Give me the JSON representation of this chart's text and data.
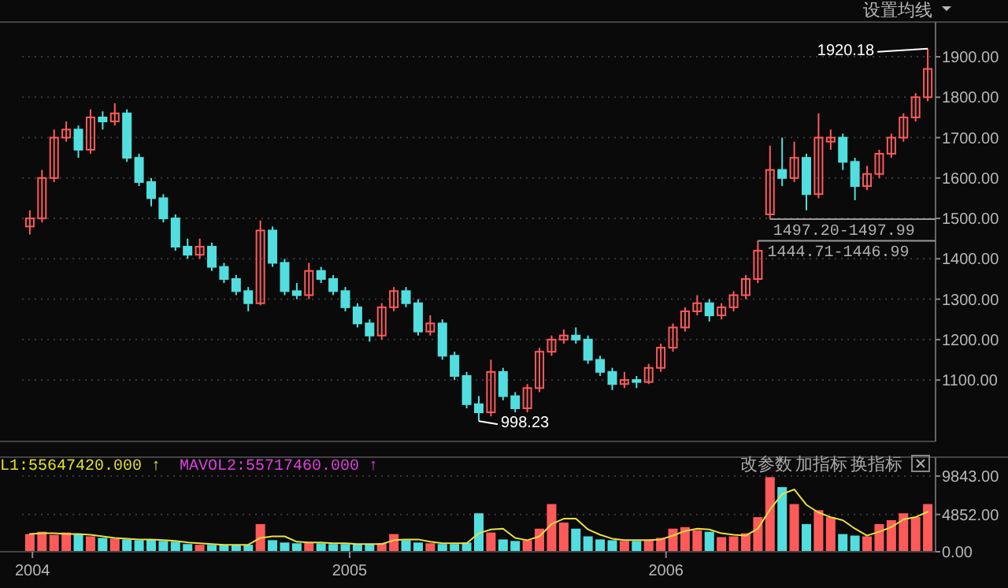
{
  "chart_data": [
    {
      "type": "candlestick",
      "xlim": [
        "2003-12-20",
        "2006-11-08"
      ],
      "ylim": [
        948,
        1986
      ],
      "yticks": [
        {
          "value": 1100,
          "label": "1100.00"
        },
        {
          "value": 1200,
          "label": "1200.00"
        },
        {
          "value": 1300,
          "label": "1300.00"
        },
        {
          "value": 1400,
          "label": "1400.00"
        },
        {
          "value": 1500,
          "label": "1500.00"
        },
        {
          "value": 1600,
          "label": "1600.00"
        },
        {
          "value": 1700,
          "label": "1700.00"
        },
        {
          "value": 1800,
          "label": "1800.00"
        },
        {
          "value": 1900,
          "label": "1900.00"
        }
      ],
      "grid": "y",
      "tick_labels": "y",
      "x": [
        "2003-12-29",
        "2004-01-12",
        "2004-01-26",
        "2004-02-09",
        "2004-02-23",
        "2004-03-08",
        "2004-03-22",
        "2004-04-05",
        "2004-04-19",
        "2004-05-03",
        "2004-05-17",
        "2004-05-31",
        "2004-06-14",
        "2004-06-28",
        "2004-07-12",
        "2004-07-26",
        "2004-08-09",
        "2004-08-23",
        "2004-09-06",
        "2004-09-20",
        "2004-10-04",
        "2004-10-18",
        "2004-11-01",
        "2004-11-15",
        "2004-11-29",
        "2004-12-13",
        "2004-12-27",
        "2005-01-10",
        "2005-01-24",
        "2005-02-07",
        "2005-02-21",
        "2005-03-07",
        "2005-03-21",
        "2005-04-04",
        "2005-04-18",
        "2005-05-02",
        "2005-05-16",
        "2005-05-30",
        "2005-06-13",
        "2005-06-27",
        "2005-07-11",
        "2005-07-25",
        "2005-08-08",
        "2005-08-22",
        "2005-09-05",
        "2005-09-19",
        "2005-10-03",
        "2005-10-17",
        "2005-10-31",
        "2005-11-14",
        "2005-11-28",
        "2005-12-12",
        "2005-12-26",
        "2006-01-09",
        "2006-01-23",
        "2006-02-06",
        "2006-02-20",
        "2006-03-06",
        "2006-03-20",
        "2006-04-03",
        "2006-04-17",
        "2006-05-01",
        "2006-05-15",
        "2006-05-29",
        "2006-06-12",
        "2006-06-26",
        "2006-07-10",
        "2006-07-24",
        "2006-08-07",
        "2006-08-21",
        "2006-09-04",
        "2006-09-18",
        "2006-10-02",
        "2006-10-16",
        "2006-10-30"
      ],
      "ohlc": [
        [
          1480,
          1520,
          1460,
          1500
        ],
        [
          1500,
          1620,
          1490,
          1600
        ],
        [
          1600,
          1720,
          1590,
          1700
        ],
        [
          1700,
          1740,
          1690,
          1720
        ],
        [
          1720,
          1730,
          1650,
          1670
        ],
        [
          1670,
          1770,
          1660,
          1750
        ],
        [
          1750,
          1765,
          1720,
          1740
        ],
        [
          1740,
          1785,
          1730,
          1760
        ],
        [
          1760,
          1770,
          1640,
          1650
        ],
        [
          1650,
          1660,
          1580,
          1590
        ],
        [
          1590,
          1600,
          1530,
          1550
        ],
        [
          1550,
          1560,
          1490,
          1500
        ],
        [
          1500,
          1510,
          1420,
          1430
        ],
        [
          1430,
          1450,
          1400,
          1410
        ],
        [
          1410,
          1450,
          1400,
          1430
        ],
        [
          1430,
          1440,
          1370,
          1380
        ],
        [
          1380,
          1390,
          1340,
          1350
        ],
        [
          1350,
          1360,
          1310,
          1320
        ],
        [
          1320,
          1330,
          1270,
          1290
        ],
        [
          1290,
          1495,
          1285,
          1470
        ],
        [
          1470,
          1480,
          1380,
          1390
        ],
        [
          1390,
          1400,
          1310,
          1320
        ],
        [
          1320,
          1340,
          1300,
          1310
        ],
        [
          1310,
          1390,
          1300,
          1370
        ],
        [
          1370,
          1380,
          1340,
          1350
        ],
        [
          1350,
          1360,
          1310,
          1320
        ],
        [
          1320,
          1330,
          1270,
          1280
        ],
        [
          1280,
          1290,
          1230,
          1240
        ],
        [
          1240,
          1250,
          1195,
          1210
        ],
        [
          1210,
          1290,
          1200,
          1280
        ],
        [
          1280,
          1330,
          1270,
          1320
        ],
        [
          1320,
          1330,
          1280,
          1290
        ],
        [
          1290,
          1300,
          1210,
          1220
        ],
        [
          1220,
          1260,
          1210,
          1240
        ],
        [
          1240,
          1250,
          1150,
          1160
        ],
        [
          1160,
          1170,
          1100,
          1110
        ],
        [
          1110,
          1120,
          1030,
          1040
        ],
        [
          1040,
          1060,
          998.23,
          1020
        ],
        [
          1020,
          1150,
          1010,
          1120
        ],
        [
          1120,
          1130,
          1050,
          1060
        ],
        [
          1060,
          1070,
          1020,
          1030
        ],
        [
          1030,
          1090,
          1020,
          1080
        ],
        [
          1080,
          1180,
          1070,
          1170
        ],
        [
          1170,
          1210,
          1160,
          1200
        ],
        [
          1200,
          1225,
          1190,
          1210
        ],
        [
          1210,
          1230,
          1190,
          1200
        ],
        [
          1200,
          1210,
          1140,
          1150
        ],
        [
          1150,
          1160,
          1110,
          1120
        ],
        [
          1120,
          1130,
          1075,
          1090
        ],
        [
          1090,
          1120,
          1080,
          1100
        ],
        [
          1100,
          1110,
          1080,
          1095
        ],
        [
          1095,
          1140,
          1090,
          1130
        ],
        [
          1130,
          1190,
          1120,
          1180
        ],
        [
          1180,
          1240,
          1170,
          1230
        ],
        [
          1230,
          1280,
          1220,
          1270
        ],
        [
          1270,
          1310,
          1260,
          1290
        ],
        [
          1290,
          1300,
          1245,
          1260
        ],
        [
          1260,
          1290,
          1250,
          1280
        ],
        [
          1280,
          1320,
          1270,
          1310
        ],
        [
          1310,
          1360,
          1300,
          1350
        ],
        [
          1350,
          1444.71,
          1340,
          1420
        ],
        [
          1510,
          1680,
          1497.99,
          1620
        ],
        [
          1620,
          1700,
          1580,
          1600
        ],
        [
          1600,
          1690,
          1590,
          1650
        ],
        [
          1650,
          1660,
          1520,
          1560
        ],
        [
          1560,
          1760,
          1550,
          1700
        ],
        [
          1690,
          1720,
          1670,
          1700
        ],
        [
          1700,
          1710,
          1620,
          1640
        ],
        [
          1640,
          1650,
          1545,
          1580
        ],
        [
          1580,
          1630,
          1570,
          1610
        ],
        [
          1610,
          1670,
          1600,
          1660
        ],
        [
          1660,
          1710,
          1650,
          1700
        ],
        [
          1700,
          1760,
          1690,
          1750
        ],
        [
          1750,
          1810,
          1740,
          1800
        ],
        [
          1800,
          1920.18,
          1790,
          1870
        ]
      ],
      "colors": [
        "#ff5a5a",
        "#ff5a5a",
        "#ff5a5a",
        "#ff5a5a",
        "#52dede",
        "#ff5a5a",
        "#52dede",
        "#ff5a5a",
        "#52dede",
        "#52dede",
        "#52dede",
        "#52dede",
        "#52dede",
        "#52dede",
        "#ff5a5a",
        "#52dede",
        "#52dede",
        "#52dede",
        "#52dede",
        "#ff5a5a",
        "#52dede",
        "#52dede",
        "#52dede",
        "#ff5a5a",
        "#52dede",
        "#52dede",
        "#52dede",
        "#52dede",
        "#52dede",
        "#ff5a5a",
        "#ff5a5a",
        "#52dede",
        "#52dede",
        "#ff5a5a",
        "#52dede",
        "#52dede",
        "#52dede",
        "#52dede",
        "#ff5a5a",
        "#52dede",
        "#52dede",
        "#ff5a5a",
        "#ff5a5a",
        "#ff5a5a",
        "#ff5a5a",
        "#52dede",
        "#52dede",
        "#52dede",
        "#52dede",
        "#ff5a5a",
        "#52dede",
        "#ff5a5a",
        "#ff5a5a",
        "#ff5a5a",
        "#ff5a5a",
        "#ff5a5a",
        "#52dede",
        "#ff5a5a",
        "#ff5a5a",
        "#ff5a5a",
        "#ff5a5a",
        "#ff5a5a",
        "#52dede",
        "#ff5a5a",
        "#52dede",
        "#ff5a5a",
        "#ff5a5a",
        "#52dede",
        "#52dede",
        "#ff5a5a",
        "#ff5a5a",
        "#ff5a5a",
        "#ff5a5a",
        "#ff5a5a",
        "#ff5a5a"
      ],
      "annotations": [
        "设置均线",
        {
          "text": "1920.18",
          "x": "2006-10-30",
          "y": 1920.18
        },
        {
          "text": "998.23",
          "x": "2005-05-30",
          "y": 998.23
        },
        {
          "text": "1497.20-1497.99",
          "x": "2006-05-01",
          "y": 1497.99
        },
        {
          "text": "1444.71-1446.99",
          "x": "2006-04-17",
          "y": 1444.71
        }
      ]
    },
    {
      "type": "bar",
      "xlim": [
        "2003-12-20",
        "2006-11-08"
      ],
      "ylim": [
        0,
        12300
      ],
      "yticks": [
        {
          "value": 0,
          "label": "0.00"
        },
        {
          "value": 4852,
          "label": "4852.00"
        },
        {
          "value": 9843,
          "label": "9843.00"
        }
      ],
      "xticks": [
        {
          "value": "2004-01-01",
          "label": "2004"
        },
        {
          "value": "2005-01-01",
          "label": "2005"
        },
        {
          "value": "2006-01-01",
          "label": "2006"
        }
      ],
      "grid": "y",
      "x": [
        "2003-12-29",
        "2004-01-12",
        "2004-01-26",
        "2004-02-09",
        "2004-02-23",
        "2004-03-08",
        "2004-03-22",
        "2004-04-05",
        "2004-04-19",
        "2004-05-03",
        "2004-05-17",
        "2004-05-31",
        "2004-06-14",
        "2004-06-28",
        "2004-07-12",
        "2004-07-26",
        "2004-08-09",
        "2004-08-23",
        "2004-09-06",
        "2004-09-20",
        "2004-10-04",
        "2004-10-18",
        "2004-11-01",
        "2004-11-15",
        "2004-11-29",
        "2004-12-13",
        "2004-12-27",
        "2005-01-10",
        "2005-01-24",
        "2005-02-07",
        "2005-02-21",
        "2005-03-07",
        "2005-03-21",
        "2005-04-04",
        "2005-04-18",
        "2005-05-02",
        "2005-05-16",
        "2005-05-30",
        "2005-06-13",
        "2005-06-27",
        "2005-07-11",
        "2005-07-25",
        "2005-08-08",
        "2005-08-22",
        "2005-09-05",
        "2005-09-19",
        "2005-10-03",
        "2005-10-17",
        "2005-10-31",
        "2005-11-14",
        "2005-11-28",
        "2005-12-12",
        "2005-12-26",
        "2006-01-09",
        "2006-01-23",
        "2006-02-06",
        "2006-02-20",
        "2006-03-06",
        "2006-03-20",
        "2006-04-03",
        "2006-04-17",
        "2006-05-01",
        "2006-05-15",
        "2006-05-29",
        "2006-06-12",
        "2006-06-26",
        "2006-07-10",
        "2006-07-24",
        "2006-08-07",
        "2006-08-21",
        "2006-09-04",
        "2006-09-18",
        "2006-10-02",
        "2006-10-16",
        "2006-10-30"
      ],
      "series": [
        {
          "colors": [
            "#ff5a5a",
            "#ff5a5a",
            "#ff5a5a",
            "#ff5a5a",
            "#52dede",
            "#ff5a5a",
            "#52dede",
            "#ff5a5a",
            "#52dede",
            "#52dede",
            "#52dede",
            "#52dede",
            "#52dede",
            "#52dede",
            "#ff5a5a",
            "#52dede",
            "#52dede",
            "#52dede",
            "#52dede",
            "#ff5a5a",
            "#52dede",
            "#52dede",
            "#52dede",
            "#ff5a5a",
            "#52dede",
            "#52dede",
            "#52dede",
            "#52dede",
            "#52dede",
            "#ff5a5a",
            "#ff5a5a",
            "#52dede",
            "#52dede",
            "#ff5a5a",
            "#52dede",
            "#52dede",
            "#52dede",
            "#52dede",
            "#ff5a5a",
            "#52dede",
            "#52dede",
            "#ff5a5a",
            "#ff5a5a",
            "#ff5a5a",
            "#ff5a5a",
            "#52dede",
            "#52dede",
            "#52dede",
            "#52dede",
            "#ff5a5a",
            "#52dede",
            "#ff5a5a",
            "#ff5a5a",
            "#ff5a5a",
            "#ff5a5a",
            "#ff5a5a",
            "#52dede",
            "#ff5a5a",
            "#ff5a5a",
            "#ff5a5a",
            "#ff5a5a",
            "#ff5a5a",
            "#52dede",
            "#ff5a5a",
            "#52dede",
            "#ff5a5a",
            "#ff5a5a",
            "#52dede",
            "#52dede",
            "#ff5a5a",
            "#ff5a5a",
            "#ff5a5a",
            "#ff5a5a",
            "#ff5a5a",
            "#ff5a5a"
          ],
          "values": [
            2300,
            2600,
            2200,
            2500,
            2300,
            2000,
            1800,
            1700,
            1600,
            1500,
            1600,
            1400,
            1300,
            1000,
            900,
            900,
            900,
            900,
            900,
            3600,
            1500,
            1200,
            1100,
            1200,
            1100,
            1000,
            1000,
            1000,
            1000,
            1100,
            2300,
            1500,
            1200,
            1100,
            1000,
            1000,
            1200,
            5000,
            2500,
            1600,
            1400,
            1500,
            3000,
            6200,
            3800,
            3000,
            2000,
            1600,
            1500,
            1400,
            1400,
            1500,
            1800,
            3000,
            3200,
            2800,
            2600,
            1900,
            2000,
            2400,
            4500,
            9700,
            8400,
            6200,
            3600,
            5400,
            4500,
            2300,
            2100,
            2000,
            3600,
            4100,
            5000,
            4500,
            6200
          ]
        },
        {
          "type": "line",
          "color": "#e8e040",
          "values": [
            2300,
            2400,
            2400,
            2300,
            2300,
            2200,
            2000,
            1800,
            1700,
            1600,
            1600,
            1500,
            1400,
            1200,
            1100,
            1000,
            900,
            900,
            900,
            1800,
            2000,
            2000,
            1300,
            1200,
            1200,
            1100,
            1100,
            1000,
            1000,
            1000,
            1500,
            1600,
            1600,
            1300,
            1100,
            1100,
            1100,
            2400,
            2900,
            3000,
            1800,
            1500,
            2000,
            3600,
            4300,
            4300,
            2900,
            2200,
            1700,
            1500,
            1500,
            1500,
            1600,
            2100,
            2700,
            3000,
            2900,
            2400,
            2200,
            2100,
            3000,
            5500,
            7500,
            8100,
            6100,
            5100,
            4500,
            4100,
            3000,
            2100,
            2600,
            3200,
            4200,
            4500,
            5200
          ]
        }
      ],
      "annotations": [
        "L1:55647420.000 ↑",
        "MAVOL2:55717460.000 ↑",
        "改参数",
        "加指标",
        "换指标"
      ]
    }
  ]
}
